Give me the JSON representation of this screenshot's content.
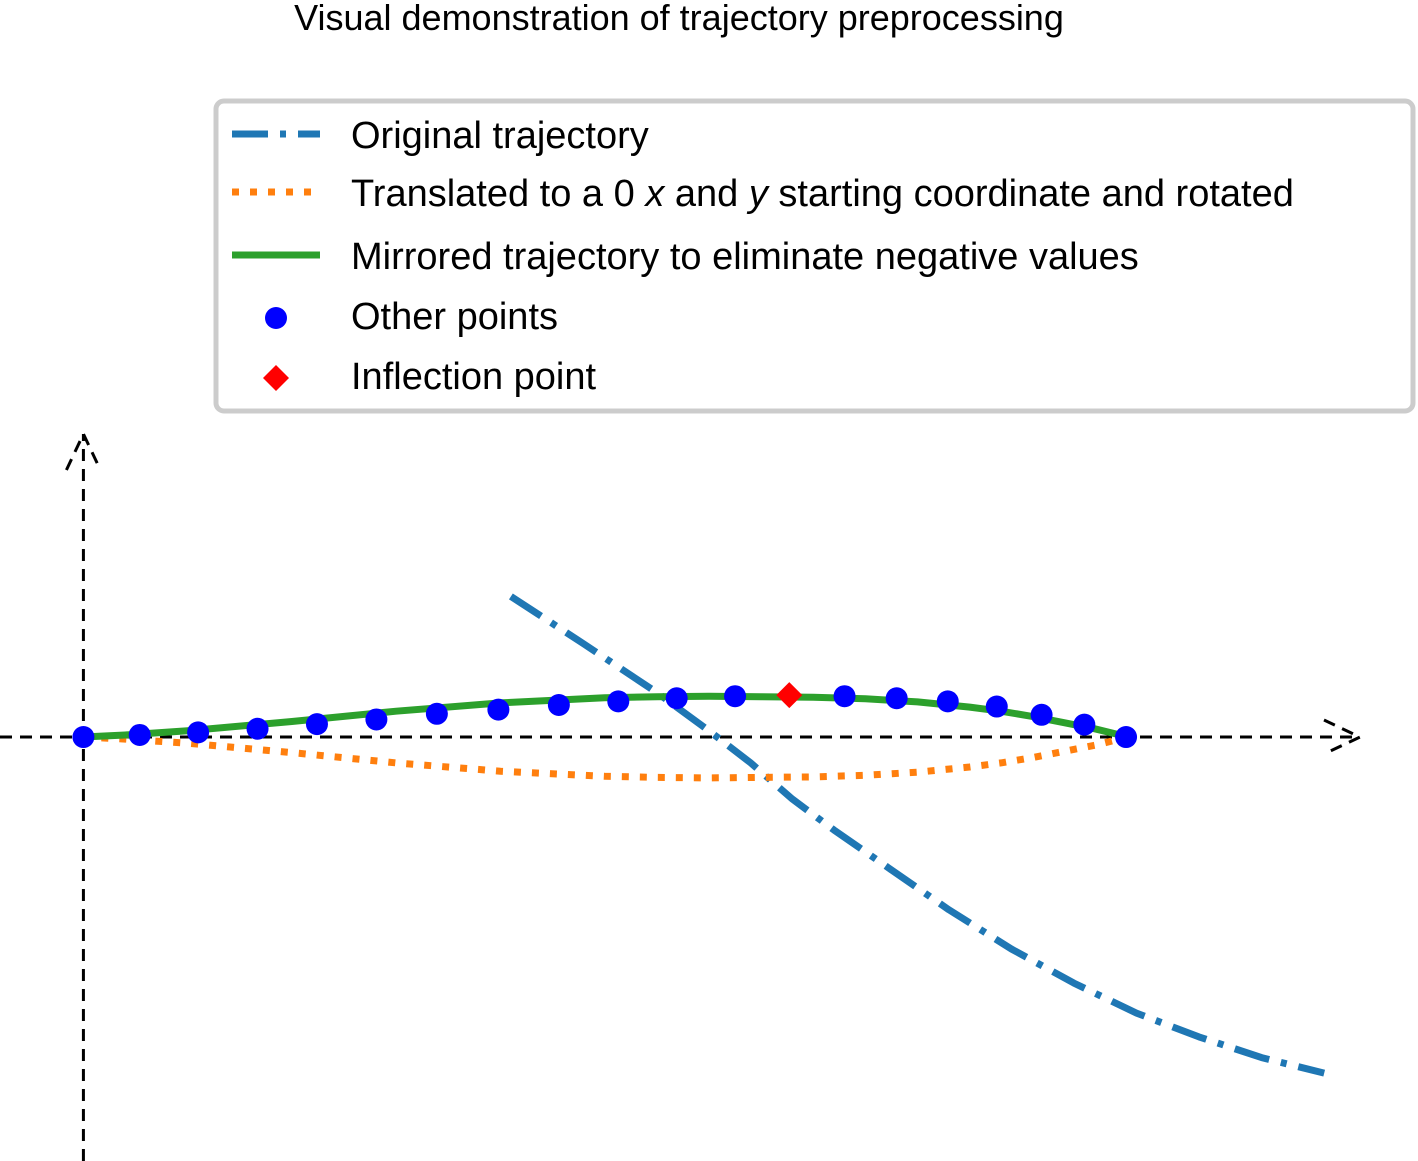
{
  "colors": {
    "original": "#1f77b4",
    "translated": "#ff7f0e",
    "mirrored": "#2ca02c",
    "points": "#0000ff",
    "inflection": "#ff0000",
    "axes": "#000000",
    "legend_border": "#cccccc"
  },
  "chart_data": {
    "type": "line",
    "title": "Visual demonstration of trajectory preprocessing",
    "xlabel": "",
    "ylabel": "",
    "xlim": [
      -0.08,
      1.28
    ],
    "ylim": [
      -0.41,
      0.295
    ],
    "grid": false,
    "legend_placement": "top-right",
    "axes_style": "dashed arrows through origin, no ticks or tick labels",
    "legend": [
      {
        "key": "original",
        "label": "Original trajectory",
        "style": "dash-dot"
      },
      {
        "key": "translated",
        "label_parts": [
          "Translated to a 0 ",
          "x",
          " and ",
          "y",
          " starting coordinate and rotated"
        ],
        "style": "dotted"
      },
      {
        "key": "mirrored",
        "label": "Mirrored trajectory to eliminate negative values",
        "style": "solid"
      },
      {
        "key": "points",
        "label": "Other points",
        "style": "marker-circle"
      },
      {
        "key": "inflection",
        "label": "Inflection point",
        "style": "marker-diamond"
      }
    ],
    "series": [
      {
        "key": "original",
        "x": [
          0.41,
          0.48,
          0.55,
          0.6,
          0.64,
          0.68,
          0.72,
          0.77,
          0.83,
          0.89,
          0.95,
          1.01,
          1.07,
          1.13,
          1.19
        ],
        "y": [
          0.136,
          0.09,
          0.043,
          0.006,
          -0.025,
          -0.06,
          -0.09,
          -0.125,
          -0.167,
          -0.205,
          -0.238,
          -0.267,
          -0.29,
          -0.31,
          -0.325
        ]
      },
      {
        "key": "translated",
        "x": [
          0,
          0.04,
          0.1,
          0.2,
          0.3,
          0.4,
          0.5,
          0.55,
          0.6,
          0.65,
          0.7,
          0.75,
          0.8,
          0.85,
          0.88,
          0.91,
          0.94,
          0.97,
          0.99,
          1.0
        ],
        "y": [
          0,
          -0.002,
          -0.006,
          -0.015,
          -0.025,
          -0.033,
          -0.038,
          -0.039,
          -0.0395,
          -0.039,
          -0.0385,
          -0.037,
          -0.034,
          -0.029,
          -0.025,
          -0.02,
          -0.014,
          -0.008,
          -0.003,
          0
        ]
      },
      {
        "key": "mirrored",
        "x": [
          0,
          0.04,
          0.1,
          0.2,
          0.3,
          0.4,
          0.5,
          0.55,
          0.6,
          0.65,
          0.7,
          0.75,
          0.8,
          0.85,
          0.88,
          0.91,
          0.94,
          0.97,
          0.99,
          1.0
        ],
        "y": [
          0,
          0.002,
          0.006,
          0.015,
          0.025,
          0.033,
          0.038,
          0.039,
          0.0395,
          0.039,
          0.0385,
          0.037,
          0.034,
          0.029,
          0.025,
          0.02,
          0.014,
          0.008,
          0.003,
          0
        ]
      }
    ],
    "other_points": {
      "x": [
        0,
        0.054,
        0.11,
        0.167,
        0.224,
        0.281,
        0.339,
        0.398,
        0.456,
        0.513,
        0.569,
        0.625,
        0.73,
        0.78,
        0.829,
        0.876,
        0.919,
        0.96,
        1.0
      ],
      "y": [
        0,
        0.002,
        0.0045,
        0.008,
        0.0125,
        0.017,
        0.0225,
        0.0265,
        0.031,
        0.0345,
        0.0375,
        0.0395,
        0.0395,
        0.0375,
        0.0345,
        0.0295,
        0.0215,
        0.012,
        0
      ]
    },
    "inflection_point": {
      "x": 0.677,
      "y": 0.0405
    }
  }
}
